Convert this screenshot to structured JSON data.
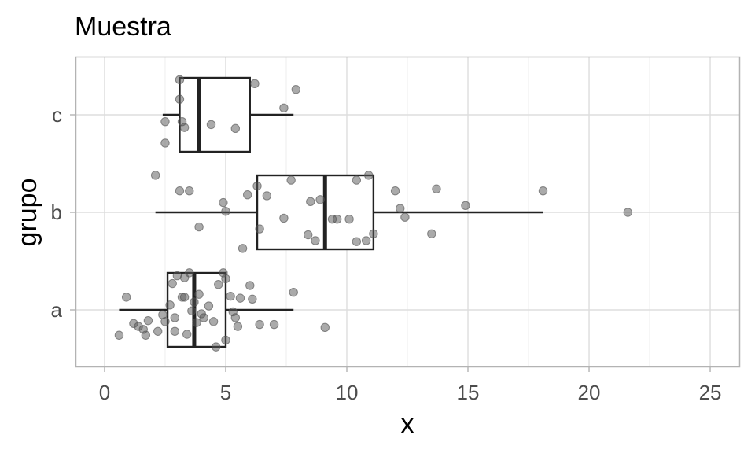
{
  "chart_data": {
    "type": "boxplot",
    "title": "Muestra",
    "xlabel": "x",
    "ylabel": "grupo",
    "xlim": [
      -1.2,
      26.2
    ],
    "x_ticks": [
      0,
      5,
      10,
      15,
      20,
      25
    ],
    "x_tick_labels": [
      "0",
      "5",
      "10",
      "15",
      "20",
      "25"
    ],
    "categories": [
      "a",
      "b",
      "c"
    ],
    "grid": true,
    "legend": "none",
    "colors": {
      "box": "#222222",
      "point": "#555555",
      "grid": "#dddddd",
      "panel_border": "#b3b3b3",
      "tick_text": "#4d4d4d"
    },
    "boxes": [
      {
        "group": "a",
        "whisker_low": 0.6,
        "q1": 2.6,
        "median": 3.7,
        "q3": 5.0,
        "whisker_high": 7.8
      },
      {
        "group": "b",
        "whisker_low": 2.1,
        "q1": 6.3,
        "median": 9.1,
        "q3": 11.1,
        "whisker_high": 18.1
      },
      {
        "group": "c",
        "whisker_low": 2.4,
        "q1": 3.1,
        "median": 3.9,
        "q3": 6.0,
        "whisker_high": 7.8
      }
    ],
    "points": [
      {
        "group": "a",
        "x": 0.9,
        "jitter": 0.13
      },
      {
        "group": "a",
        "x": 1.2,
        "jitter": -0.14
      },
      {
        "group": "a",
        "x": 1.4,
        "jitter": -0.17
      },
      {
        "group": "a",
        "x": 1.6,
        "jitter": -0.2
      },
      {
        "group": "a",
        "x": 1.7,
        "jitter": -0.26
      },
      {
        "group": "a",
        "x": 1.8,
        "jitter": -0.11
      },
      {
        "group": "a",
        "x": 0.6,
        "jitter": -0.26
      },
      {
        "group": "a",
        "x": 2.2,
        "jitter": -0.22
      },
      {
        "group": "a",
        "x": 2.4,
        "jitter": -0.05
      },
      {
        "group": "a",
        "x": 2.5,
        "jitter": -0.12
      },
      {
        "group": "a",
        "x": 2.7,
        "jitter": 0.05
      },
      {
        "group": "a",
        "x": 2.8,
        "jitter": 0.27
      },
      {
        "group": "a",
        "x": 2.9,
        "jitter": -0.22
      },
      {
        "group": "a",
        "x": 3.0,
        "jitter": 0.35
      },
      {
        "group": "a",
        "x": 3.2,
        "jitter": 0.13
      },
      {
        "group": "a",
        "x": 3.3,
        "jitter": 0.33
      },
      {
        "group": "a",
        "x": 3.4,
        "jitter": -0.25
      },
      {
        "group": "a",
        "x": 3.5,
        "jitter": 0.38
      },
      {
        "group": "a",
        "x": 3.6,
        "jitter": -0.01
      },
      {
        "group": "a",
        "x": 3.7,
        "jitter": 0.08
      },
      {
        "group": "a",
        "x": 3.8,
        "jitter": -0.13
      },
      {
        "group": "a",
        "x": 3.9,
        "jitter": 0.16
      },
      {
        "group": "a",
        "x": 4.1,
        "jitter": -0.08
      },
      {
        "group": "a",
        "x": 4.3,
        "jitter": 0.04
      },
      {
        "group": "a",
        "x": 4.5,
        "jitter": -0.12
      },
      {
        "group": "a",
        "x": 4.7,
        "jitter": 0.26
      },
      {
        "group": "a",
        "x": 4.6,
        "jitter": -0.38
      },
      {
        "group": "a",
        "x": 4.9,
        "jitter": 0.38
      },
      {
        "group": "a",
        "x": 5.0,
        "jitter": 0.32
      },
      {
        "group": "a",
        "x": 5.2,
        "jitter": 0.14
      },
      {
        "group": "a",
        "x": 5.3,
        "jitter": -0.02
      },
      {
        "group": "a",
        "x": 5.4,
        "jitter": -0.08
      },
      {
        "group": "a",
        "x": 5.5,
        "jitter": -0.17
      },
      {
        "group": "a",
        "x": 5.0,
        "jitter": -0.31
      },
      {
        "group": "a",
        "x": 5.6,
        "jitter": 0.12
      },
      {
        "group": "a",
        "x": 6.1,
        "jitter": 0.11
      },
      {
        "group": "a",
        "x": 6.0,
        "jitter": 0.25
      },
      {
        "group": "a",
        "x": 6.4,
        "jitter": -0.15
      },
      {
        "group": "a",
        "x": 7.0,
        "jitter": -0.15
      },
      {
        "group": "a",
        "x": 7.8,
        "jitter": 0.18
      },
      {
        "group": "a",
        "x": 9.1,
        "jitter": -0.18
      },
      {
        "group": "a",
        "x": 2.9,
        "jitter": -0.08
      },
      {
        "group": "a",
        "x": 3.3,
        "jitter": 0.13
      },
      {
        "group": "a",
        "x": 4.0,
        "jitter": -0.04
      },
      {
        "group": "b",
        "x": 2.1,
        "jitter": 0.38
      },
      {
        "group": "b",
        "x": 3.1,
        "jitter": 0.22
      },
      {
        "group": "b",
        "x": 3.5,
        "jitter": 0.22
      },
      {
        "group": "b",
        "x": 3.9,
        "jitter": -0.15
      },
      {
        "group": "b",
        "x": 4.9,
        "jitter": 0.1
      },
      {
        "group": "b",
        "x": 5.0,
        "jitter": 0.01
      },
      {
        "group": "b",
        "x": 5.7,
        "jitter": -0.37
      },
      {
        "group": "b",
        "x": 5.9,
        "jitter": 0.18
      },
      {
        "group": "b",
        "x": 6.3,
        "jitter": 0.27
      },
      {
        "group": "b",
        "x": 6.4,
        "jitter": -0.17
      },
      {
        "group": "b",
        "x": 6.7,
        "jitter": 0.17
      },
      {
        "group": "b",
        "x": 7.4,
        "jitter": -0.06
      },
      {
        "group": "b",
        "x": 7.7,
        "jitter": 0.33
      },
      {
        "group": "b",
        "x": 8.4,
        "jitter": -0.23
      },
      {
        "group": "b",
        "x": 8.5,
        "jitter": 0.11
      },
      {
        "group": "b",
        "x": 8.7,
        "jitter": -0.29
      },
      {
        "group": "b",
        "x": 8.9,
        "jitter": 0.13
      },
      {
        "group": "b",
        "x": 9.4,
        "jitter": -0.07
      },
      {
        "group": "b",
        "x": 9.6,
        "jitter": -0.07
      },
      {
        "group": "b",
        "x": 10.1,
        "jitter": -0.07
      },
      {
        "group": "b",
        "x": 10.4,
        "jitter": -0.3
      },
      {
        "group": "b",
        "x": 10.4,
        "jitter": 0.33
      },
      {
        "group": "b",
        "x": 10.8,
        "jitter": -0.29
      },
      {
        "group": "b",
        "x": 10.9,
        "jitter": 0.38
      },
      {
        "group": "b",
        "x": 11.1,
        "jitter": -0.22
      },
      {
        "group": "b",
        "x": 12.0,
        "jitter": 0.22
      },
      {
        "group": "b",
        "x": 12.2,
        "jitter": 0.04
      },
      {
        "group": "b",
        "x": 12.4,
        "jitter": -0.05
      },
      {
        "group": "b",
        "x": 13.5,
        "jitter": -0.22
      },
      {
        "group": "b",
        "x": 13.7,
        "jitter": 0.24
      },
      {
        "group": "b",
        "x": 14.9,
        "jitter": 0.07
      },
      {
        "group": "b",
        "x": 18.1,
        "jitter": 0.22
      },
      {
        "group": "b",
        "x": 21.6,
        "jitter": 0.0
      },
      {
        "group": "c",
        "x": 2.5,
        "jitter": -0.29
      },
      {
        "group": "c",
        "x": 2.5,
        "jitter": -0.07
      },
      {
        "group": "c",
        "x": 3.1,
        "jitter": 0.16
      },
      {
        "group": "c",
        "x": 3.1,
        "jitter": 0.36
      },
      {
        "group": "c",
        "x": 3.2,
        "jitter": -0.07
      },
      {
        "group": "c",
        "x": 3.3,
        "jitter": -0.13
      },
      {
        "group": "c",
        "x": 4.4,
        "jitter": -0.1
      },
      {
        "group": "c",
        "x": 5.4,
        "jitter": -0.14
      },
      {
        "group": "c",
        "x": 6.2,
        "jitter": 0.32
      },
      {
        "group": "c",
        "x": 7.4,
        "jitter": 0.07
      },
      {
        "group": "c",
        "x": 7.9,
        "jitter": 0.26
      }
    ]
  }
}
